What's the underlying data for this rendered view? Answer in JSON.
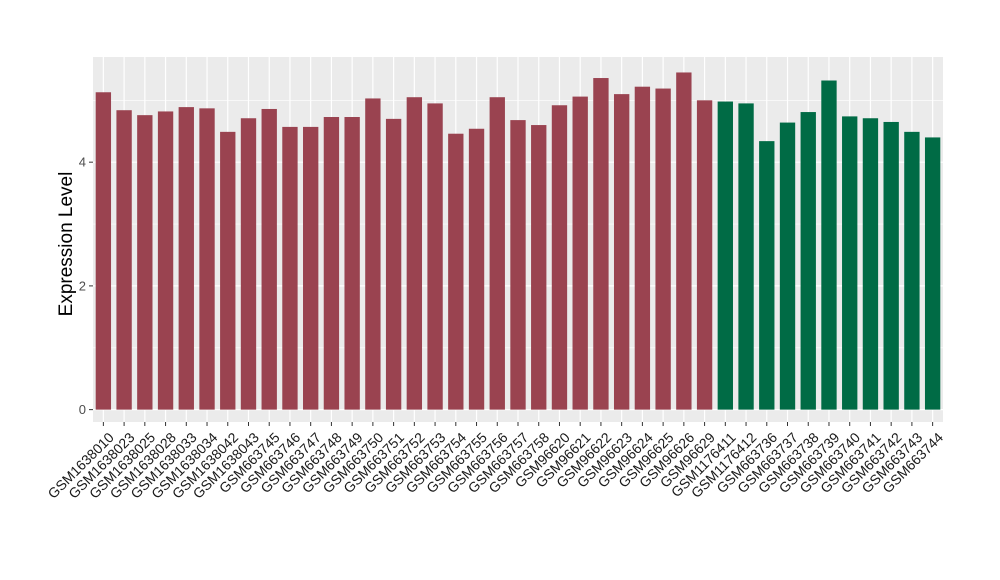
{
  "chart_data": {
    "type": "bar",
    "title": "",
    "xlabel": "",
    "ylabel": "Expression Level",
    "ylim": [
      -0.2,
      5.7
    ],
    "yticks": [
      0,
      2,
      4
    ],
    "grid": true,
    "colors": {
      "group1": "#9a4350",
      "group2": "#006b45",
      "panel": "#ebebeb",
      "gridline": "#ffffff"
    },
    "categories": [
      "GSM1638010",
      "GSM1638023",
      "GSM1638025",
      "GSM1638028",
      "GSM1638033",
      "GSM1638034",
      "GSM1638042",
      "GSM1638043",
      "GSM663745",
      "GSM663746",
      "GSM663747",
      "GSM663748",
      "GSM663749",
      "GSM663750",
      "GSM663751",
      "GSM663752",
      "GSM663753",
      "GSM663754",
      "GSM663755",
      "GSM663756",
      "GSM663757",
      "GSM663758",
      "GSM96620",
      "GSM96621",
      "GSM96622",
      "GSM96623",
      "GSM96624",
      "GSM96625",
      "GSM96626",
      "GSM96629",
      "GSM1176411",
      "GSM1176412",
      "GSM663736",
      "GSM663737",
      "GSM663738",
      "GSM663739",
      "GSM663740",
      "GSM663741",
      "GSM663742",
      "GSM663743",
      "GSM663744"
    ],
    "values": [
      5.13,
      4.84,
      4.76,
      4.82,
      4.89,
      4.87,
      4.49,
      4.71,
      4.86,
      4.57,
      4.57,
      4.73,
      4.73,
      5.03,
      4.7,
      5.05,
      4.95,
      4.46,
      4.54,
      5.05,
      4.68,
      4.6,
      4.92,
      5.06,
      5.36,
      5.1,
      5.22,
      5.19,
      5.45,
      5.0,
      4.98,
      4.95,
      4.34,
      4.64,
      4.81,
      5.32,
      4.74,
      4.71,
      4.65,
      4.49,
      4.4
    ],
    "groups": [
      0,
      0,
      0,
      0,
      0,
      0,
      0,
      0,
      0,
      0,
      0,
      0,
      0,
      0,
      0,
      0,
      0,
      0,
      0,
      0,
      0,
      0,
      0,
      0,
      0,
      0,
      0,
      0,
      0,
      0,
      1,
      1,
      1,
      1,
      1,
      1,
      1,
      1,
      1,
      1,
      1
    ]
  }
}
